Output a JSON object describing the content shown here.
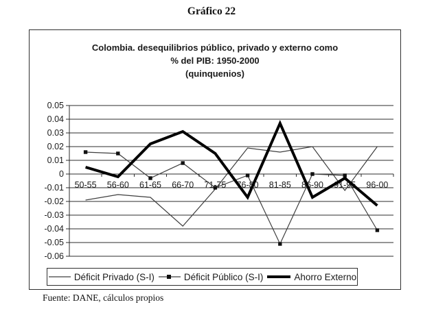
{
  "page_title": "Gráfico 22",
  "chart_title": {
    "line1": "Colombia. desequilibrios público, privado y externo como",
    "line2": "% del PIB: 1950-2000",
    "line3": "(quinquenios)"
  },
  "source_note": "Fuente: DANE, cálculos propios",
  "colors": {
    "thin_series": "#3d3d3d",
    "thick_series": "#000000",
    "marker": "#111111",
    "grid": "#2b2b2b",
    "text": "#1a1a1a"
  },
  "chart_data": {
    "type": "line",
    "categories": [
      "50-55",
      "56-60",
      "61-65",
      "66-70",
      "71-75",
      "76-80",
      "81-85",
      "86-90",
      "91-95",
      "96-00"
    ],
    "series": [
      {
        "name": "Déficit Privado (S-I)",
        "style": "thin",
        "marker": "none",
        "values": [
          -0.019,
          -0.015,
          -0.017,
          -0.038,
          -0.011,
          0.019,
          0.016,
          0.02,
          -0.012,
          0.02
        ]
      },
      {
        "name": "Déficit Público (S-I)",
        "style": "thin",
        "marker": "square",
        "values": [
          0.016,
          0.015,
          -0.003,
          0.008,
          -0.01,
          -0.001,
          -0.051,
          0.0,
          -0.001,
          -0.041
        ]
      },
      {
        "name": "Ahorro Externo",
        "style": "thick",
        "marker": "none",
        "values": [
          0.005,
          -0.002,
          0.022,
          0.031,
          0.015,
          -0.017,
          0.037,
          -0.017,
          -0.003,
          -0.023
        ]
      }
    ],
    "ylim": [
      -0.06,
      0.05
    ],
    "y_tick_step": 0.01,
    "y_tick_labels": [
      "0.05",
      "0.04",
      "0.03",
      "0.02",
      "0.01",
      "0",
      "-0.01",
      "-0.02",
      "-0.03",
      "-0.04",
      "-0.05",
      "-0.06"
    ],
    "grid": true,
    "legend_position": "bottom"
  }
}
